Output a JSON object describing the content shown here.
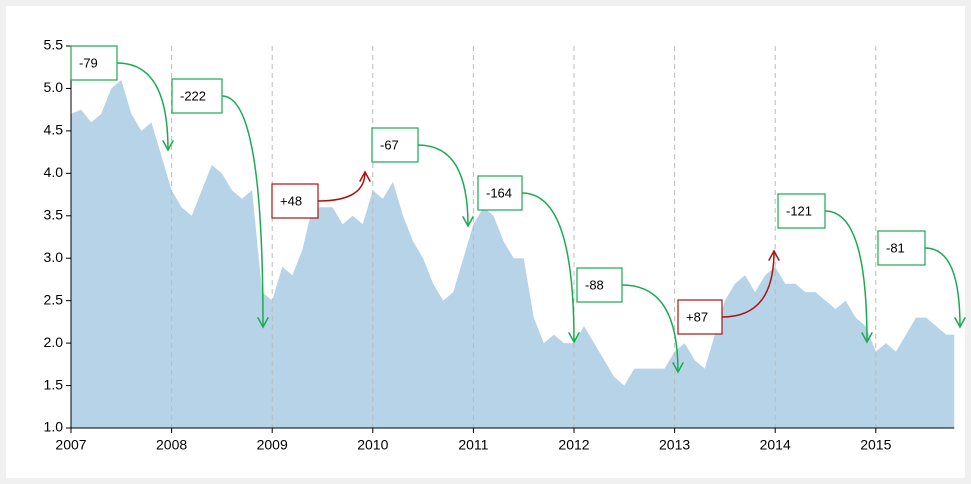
{
  "chart_data": {
    "type": "area",
    "color": "#b7d3e8",
    "xlim": [
      2007,
      2015.78
    ],
    "ylim": [
      1,
      5.5
    ],
    "xticks": [
      2007,
      2008,
      2009,
      2010,
      2011,
      2012,
      2013,
      2014,
      2015
    ],
    "yticks": [
      {
        "value": 1,
        "label": "1.0"
      },
      1.5,
      {
        "value": 2,
        "label": "2.0"
      },
      2.5,
      {
        "value": 3,
        "label": "3.0"
      },
      3.5,
      {
        "value": 4,
        "label": "4.0"
      },
      4.5,
      {
        "value": 5,
        "label": "5.0"
      },
      5.5
    ],
    "grid": true,
    "x": [
      2007.0,
      2007.1,
      2007.2,
      2007.3,
      2007.4,
      2007.5,
      2007.6,
      2007.7,
      2007.8,
      2007.9,
      2008.0,
      2008.1,
      2008.2,
      2008.3,
      2008.4,
      2008.5,
      2008.6,
      2008.7,
      2008.8,
      2008.9,
      2009.0,
      2009.1,
      2009.2,
      2009.3,
      2009.4,
      2009.5,
      2009.6,
      2009.7,
      2009.8,
      2009.9,
      2010.0,
      2010.1,
      2010.2,
      2010.3,
      2010.4,
      2010.5,
      2010.6,
      2010.7,
      2010.8,
      2010.9,
      2011.0,
      2011.1,
      2011.2,
      2011.3,
      2011.4,
      2011.5,
      2011.6,
      2011.7,
      2011.8,
      2011.9,
      2012.0,
      2012.1,
      2012.2,
      2012.3,
      2012.4,
      2012.5,
      2012.6,
      2012.7,
      2012.8,
      2012.9,
      2013.0,
      2013.1,
      2013.2,
      2013.3,
      2013.4,
      2013.5,
      2013.6,
      2013.7,
      2013.8,
      2013.9,
      2014.0,
      2014.1,
      2014.2,
      2014.3,
      2014.4,
      2014.5,
      2014.6,
      2014.7,
      2014.8,
      2014.9,
      2015.0,
      2015.1,
      2015.2,
      2015.3,
      2015.4,
      2015.5,
      2015.6,
      2015.7,
      2015.78
    ],
    "values": [
      4.7,
      4.75,
      4.6,
      4.7,
      5.0,
      5.1,
      4.7,
      4.5,
      4.6,
      4.2,
      3.8,
      3.6,
      3.5,
      3.8,
      4.1,
      4.0,
      3.8,
      3.7,
      3.8,
      2.6,
      2.5,
      2.9,
      2.8,
      3.1,
      3.6,
      3.6,
      3.6,
      3.4,
      3.5,
      3.4,
      3.8,
      3.7,
      3.9,
      3.5,
      3.2,
      3.0,
      2.7,
      2.5,
      2.6,
      3.0,
      3.4,
      3.6,
      3.5,
      3.2,
      3.0,
      3.0,
      2.3,
      2.0,
      2.1,
      2.0,
      2.0,
      2.2,
      2.0,
      1.8,
      1.6,
      1.5,
      1.7,
      1.7,
      1.7,
      1.7,
      1.9,
      2.0,
      1.8,
      1.7,
      2.1,
      2.5,
      2.7,
      2.8,
      2.6,
      2.8,
      2.9,
      2.7,
      2.7,
      2.6,
      2.6,
      2.5,
      2.4,
      2.5,
      2.3,
      2.2,
      1.9,
      2.0,
      1.9,
      2.1,
      2.3,
      2.3,
      2.2,
      2.1,
      2.1
    ],
    "annotations": [
      {
        "text": "-79",
        "color": "#1aab4f"
      },
      {
        "text": "-222",
        "color": "#1aab4f"
      },
      {
        "text": "+48",
        "color": "#aa1111"
      },
      {
        "text": "-67",
        "color": "#1aab4f"
      },
      {
        "text": "-164",
        "color": "#1aab4f"
      },
      {
        "text": "-88",
        "color": "#1aab4f"
      },
      {
        "text": "+87",
        "color": "#aa1111"
      },
      {
        "text": "-121",
        "color": "#1aab4f"
      },
      {
        "text": "-81",
        "color": "#1aab4f"
      }
    ]
  }
}
